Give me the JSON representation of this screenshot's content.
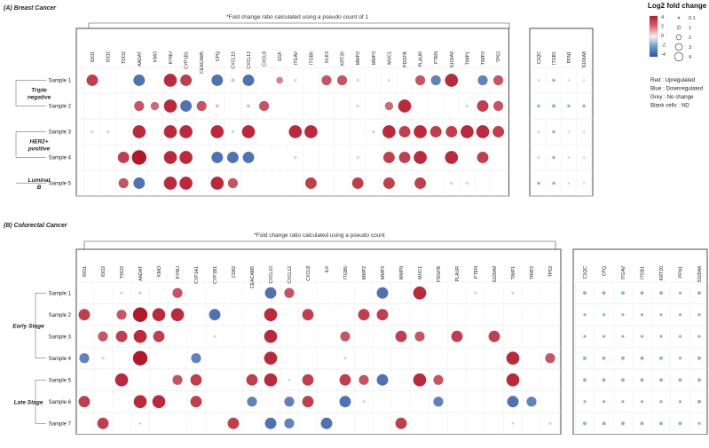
{
  "chart_data": [
    {
      "type": "scatter",
      "panel_title": "(A) Breast Cancer",
      "note": "*Fold change ratio calculated using a pseudo count of 1",
      "groups": [
        {
          "label_lines": [
            "Triple",
            "negative"
          ],
          "samples": [
            "Sample 1",
            "Sample 2"
          ]
        },
        {
          "label_lines": [
            "HER2+",
            "positive"
          ],
          "samples": [
            "Sample 3",
            "Sample 4"
          ]
        },
        {
          "label_lines": [
            "Luminal",
            "B"
          ],
          "samples": [
            "Sample 5"
          ]
        }
      ],
      "samples": [
        "Sample 1",
        "Sample 2",
        "Sample 3",
        "Sample 4",
        "Sample 5"
      ],
      "genes_main": [
        "IDO1",
        "IDO2",
        "TDO2",
        "AADAT",
        "KMO",
        "KYNU",
        "CYP1B1",
        "CEACAM5",
        "CPQ",
        "CXCL10",
        "CXCL12",
        "CXCL8",
        "EGF",
        "ITGAV",
        "ITGB6",
        "KLK3",
        "KRT20",
        "MMP2",
        "MMP3",
        "MUC1",
        "PDGFB",
        "PLAUR",
        "PTEN",
        "S100A9",
        "TIMP1",
        "TIMP2",
        "TP53"
      ],
      "genes_side": [
        "C1QC",
        "ITGB1",
        "PFN1",
        "S100A8"
      ],
      "values_main": [
        [
          3,
          0,
          0,
          -3,
          0,
          3.5,
          3,
          0,
          -3,
          -0.5,
          -3,
          0,
          1.5,
          -0.3,
          0,
          2.5,
          2.5,
          -0.3,
          0,
          0.1,
          0,
          2.5,
          -2.5,
          3.5,
          0,
          -2.5,
          2.5
        ],
        [
          0,
          0,
          0,
          2.5,
          2,
          3.5,
          -3,
          2.5,
          0.5,
          0,
          -0.5,
          2.5,
          0,
          0,
          0,
          0,
          0,
          -0.3,
          0,
          2,
          3.5,
          0,
          0,
          0,
          -0.3,
          3,
          2.5
        ],
        [
          -0.3,
          -0.2,
          0,
          3.5,
          0,
          3.5,
          3.5,
          0,
          3.5,
          -0.3,
          3.5,
          0,
          0,
          3.5,
          3.5,
          0,
          0,
          0,
          0.2,
          3.5,
          3,
          3.5,
          3,
          3,
          3.5,
          3.5,
          3
        ],
        [
          0,
          0,
          3,
          4,
          0,
          3.5,
          3.5,
          0,
          -3,
          -3,
          -3,
          0,
          0,
          -0.3,
          0,
          0,
          0,
          -0.3,
          0,
          3,
          3,
          3.5,
          0,
          3.5,
          0,
          3,
          0
        ],
        [
          0,
          0,
          2.5,
          -3,
          0,
          3.5,
          3.5,
          0,
          3.5,
          2.5,
          0,
          0,
          0,
          0,
          3,
          0,
          0,
          3,
          0,
          3,
          0,
          3,
          0,
          -0.3,
          -0.3,
          0,
          0
        ]
      ],
      "values_side": [
        [
          0.2,
          -0.3,
          0.1,
          0.1
        ],
        [
          -0.3,
          -0.4,
          -0.3,
          -0.3
        ],
        [
          0.2,
          -0.3,
          0.1,
          0.1
        ],
        [
          0.2,
          -0.3,
          0.1,
          0.1
        ],
        [
          -0.3,
          -0.3,
          0.1,
          0.1
        ]
      ]
    },
    {
      "type": "scatter",
      "panel_title": "(B) Colorectal Cancer",
      "note": "*Fold change ratio calculated using a pseudo count",
      "groups": [
        {
          "label_lines": [
            "Early Stage"
          ],
          "samples": [
            "Sample 1",
            "Sample 2",
            "Sample 3",
            "Sample 4"
          ]
        },
        {
          "label_lines": [
            "Late Stage"
          ],
          "samples": [
            "Sample 5",
            "Sample 6",
            "Sample 7"
          ]
        }
      ],
      "samples": [
        "Sample 1",
        "Sample 2",
        "Sample 3",
        "Sample 4",
        "Sample 5",
        "Sample 6",
        "Sample 7"
      ],
      "genes_main": [
        "IDO1",
        "IDO2",
        "TDO2",
        "AADAT",
        "KMO",
        "KYNU",
        "CYP1A1",
        "CYP1B1",
        "CD82",
        "CEACAM5",
        "CXCL10",
        "CXCL12",
        "CXCL8",
        "IL6",
        "ITGB6",
        "MMP2",
        "MMP3",
        "MMP9",
        "MUC1",
        "PDGFB",
        "PLAUR",
        "PTEN",
        "S100A9",
        "TIMP1",
        "TIMP2",
        "TP53"
      ],
      "genes_side": [
        "C1QC",
        "CPQ",
        "ITGAV",
        "ITGB1",
        "KRT20",
        "PFN1",
        "S100A8"
      ],
      "values_main": [
        [
          0,
          0,
          0.2,
          -0.4,
          0,
          2.5,
          0,
          0,
          0,
          0,
          -3,
          2.5,
          0,
          0,
          0,
          0,
          -3,
          0,
          3.5,
          0,
          0,
          -0.3,
          0,
          -0.3,
          0,
          0
        ],
        [
          3,
          0,
          2.5,
          4,
          3.5,
          3.5,
          0,
          -3,
          0,
          0,
          3.5,
          0,
          3,
          0,
          0,
          3,
          3,
          0,
          0,
          0,
          0,
          0,
          0,
          0,
          0,
          0
        ],
        [
          0,
          2.5,
          3,
          3.5,
          3,
          0,
          0,
          0.1,
          0,
          0,
          3.5,
          0,
          0,
          0,
          2.5,
          0,
          0,
          3,
          2.5,
          0,
          3,
          0,
          3,
          0,
          0,
          0
        ],
        [
          -2.5,
          -0.3,
          0,
          4,
          0,
          0,
          -2.5,
          0,
          0,
          0,
          3.5,
          0,
          0,
          0,
          -0.3,
          0,
          0,
          0,
          0,
          0,
          0,
          0,
          0,
          3.5,
          0,
          2.5
        ],
        [
          0,
          0,
          3.5,
          0,
          0,
          2.5,
          3,
          0,
          0,
          3,
          3.5,
          0.1,
          3,
          0,
          3,
          2.5,
          -3,
          0,
          3.5,
          2.5,
          0,
          0,
          0,
          3.5,
          0,
          0
        ],
        [
          3,
          0,
          0,
          3.5,
          3.5,
          0,
          3,
          0,
          0,
          -2.5,
          0,
          -2.5,
          3,
          0,
          -3,
          -0.3,
          0,
          0,
          0,
          -2.5,
          0,
          0,
          0,
          -3,
          -2.5,
          0
        ],
        [
          0,
          3,
          0,
          0.1,
          0,
          0,
          0,
          0,
          3,
          0,
          -3,
          -2.5,
          0,
          -3,
          0,
          0,
          0,
          3,
          0,
          0,
          0,
          0,
          0,
          0.1,
          0,
          -0.3
        ]
      ],
      "values_side": [
        [
          -0.4,
          -0.4,
          -0.4,
          -0.4,
          -0.4,
          -0.2,
          -0.4
        ],
        [
          -0.2,
          -0.2,
          -0.2,
          -0.2,
          -0.2,
          -0.2,
          -0.2
        ],
        [
          -0.2,
          -0.2,
          -0.2,
          -0.2,
          -0.2,
          -0.2,
          -0.2
        ],
        [
          -0.4,
          -0.4,
          -0.4,
          -0.4,
          -0.4,
          -0.2,
          -0.4
        ],
        [
          -0.4,
          -0.4,
          -0.4,
          -0.4,
          -0.4,
          -0.4,
          -0.4
        ],
        [
          -0.2,
          -0.2,
          -0.2,
          -0.2,
          -0.2,
          -0.2,
          -0.4
        ],
        [
          -0.4,
          -0.4,
          -0.4,
          -0.4,
          -0.4,
          -0.4,
          -0.2
        ]
      ]
    }
  ],
  "legend": {
    "title": "Log2 fold change",
    "color_ticks": [
      "4",
      "2",
      "0",
      "-2",
      "-4"
    ],
    "size_ticks": [
      "0.1",
      "1",
      "2",
      "3",
      "4"
    ],
    "size_values": [
      0.1,
      1,
      2,
      3,
      4
    ],
    "key_lines": [
      "Red : Upregulated",
      "Blue : Downregulated",
      "Grey : No change",
      "Blank cells : ND"
    ],
    "colors": {
      "up": "#b2182b",
      "mid": "#f2f2f2",
      "down": "#2c56a0",
      "grey": "#cccccc"
    }
  }
}
